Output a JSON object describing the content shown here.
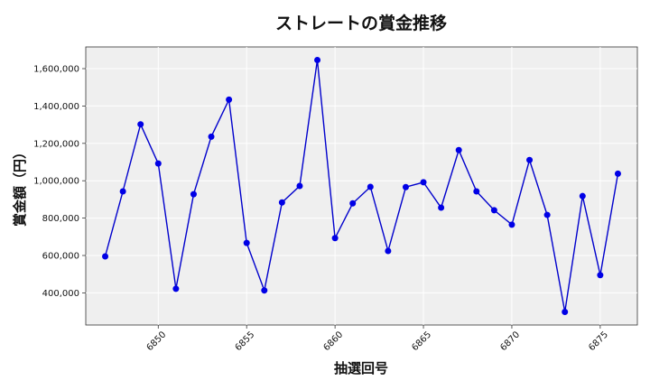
{
  "chart_data": {
    "type": "line",
    "title": "ストレートの賞金推移",
    "xlabel": "抽選回号",
    "ylabel": "賞金額（円）",
    "x": [
      6847,
      6848,
      6849,
      6850,
      6851,
      6852,
      6853,
      6854,
      6855,
      6856,
      6857,
      6858,
      6859,
      6860,
      6861,
      6862,
      6863,
      6864,
      6865,
      6866,
      6867,
      6868,
      6869,
      6870,
      6871,
      6872,
      6873,
      6874,
      6875,
      6876
    ],
    "series": [
      {
        "values": [
          595000,
          943000,
          1302000,
          1092000,
          422000,
          928000,
          1236000,
          1434000,
          667000,
          413000,
          884000,
          972000,
          1646000,
          693000,
          879000,
          967000,
          624000,
          966000,
          992000,
          856000,
          1164000,
          943000,
          842000,
          765000,
          1111000,
          817000,
          298000,
          918000,
          495000,
          1038000
        ],
        "color": "#0000cc"
      }
    ],
    "xlim": [
      6845.9,
      6877.1
    ],
    "ylim": [
      228000,
      1716000
    ],
    "x_ticks": [
      6850,
      6855,
      6860,
      6865,
      6870,
      6875
    ],
    "x_tick_labels": [
      "6850",
      "6855",
      "6860",
      "6865",
      "6870",
      "6875"
    ],
    "y_ticks": [
      400000,
      600000,
      800000,
      1000000,
      1200000,
      1400000,
      1600000
    ],
    "y_tick_labels": [
      "400,000",
      "600,000",
      "800,000",
      "1,000,000",
      "1,200,000",
      "1,400,000",
      "1,600,000"
    ],
    "grid": true,
    "background": "#efefef"
  }
}
